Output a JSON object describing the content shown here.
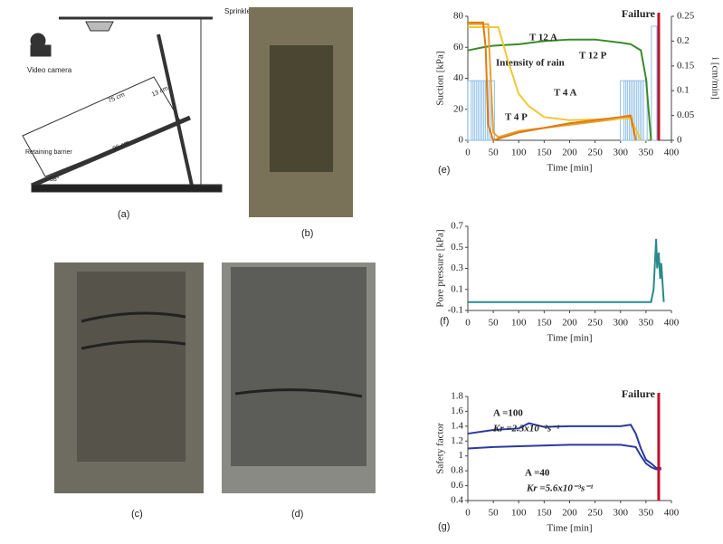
{
  "figure": {
    "panel_labels": [
      "(a)",
      "(b)",
      "(c)",
      "(d)",
      "(e)",
      "(f)",
      "(g)"
    ],
    "diagram_labels": {
      "sprinkler": "Sprinkler",
      "camera": "Video camera",
      "length_75": "75 cm",
      "length_13": "13 cm",
      "length_96": "96 cm",
      "barrier": "Retaining barrier",
      "angle": "38°"
    }
  },
  "chart_data": [
    {
      "type": "line",
      "xlabel": "Time [min]",
      "ylabel": "Suction [kPa]",
      "y2label": "i [cm/min]",
      "xlim": [
        0,
        400
      ],
      "xticks": [
        0,
        50,
        100,
        150,
        200,
        250,
        300,
        350,
        400
      ],
      "ylim": [
        0,
        80
      ],
      "yticks": [
        0,
        20,
        40,
        60,
        80
      ],
      "y2lim": [
        0,
        0.25
      ],
      "y2ticks": [
        0,
        0.05,
        0.1,
        0.15,
        0.2,
        0.25
      ],
      "failure": {
        "label": "Failure",
        "x": 375,
        "color": "#c0102a"
      },
      "series": [
        {
          "name": "Intensity of rain",
          "color": "#9ec8ea",
          "kind": "bar",
          "axis": "y2",
          "x": [
            5,
            12,
            19,
            26,
            33,
            40,
            47,
            305,
            312,
            319,
            326,
            333,
            340,
            347,
            366
          ],
          "values": [
            0.12,
            0.12,
            0.12,
            0.12,
            0.12,
            0.12,
            0.12,
            0.12,
            0.12,
            0.12,
            0.12,
            0.12,
            0.12,
            0.12,
            0.23
          ]
        },
        {
          "name": "T 12 A",
          "color": "#3a8a2a",
          "x": [
            0,
            30,
            50,
            100,
            150,
            200,
            250,
            300,
            320,
            340,
            350,
            360
          ],
          "values": [
            58,
            60,
            61,
            62,
            64,
            65,
            65,
            63,
            62,
            58,
            40,
            0
          ]
        },
        {
          "name": "T 4 A",
          "color": "#e8a030",
          "x": [
            0,
            40,
            45,
            50,
            60,
            100,
            200,
            300,
            320,
            330
          ],
          "values": [
            75,
            75,
            40,
            5,
            2,
            6,
            10,
            14,
            15,
            0
          ]
        },
        {
          "name": "T 12 P",
          "color": "#f0c838",
          "x": [
            0,
            60,
            80,
            100,
            120,
            150,
            200,
            300,
            320,
            340
          ],
          "values": [
            73,
            73,
            50,
            30,
            22,
            15,
            13,
            14,
            14,
            0
          ]
        },
        {
          "name": "T 4 P",
          "color": "#e07a10",
          "x": [
            0,
            30,
            35,
            40,
            50,
            100,
            200,
            300,
            320,
            330
          ],
          "values": [
            76,
            76,
            60,
            10,
            0,
            5,
            11,
            15,
            16,
            0
          ]
        }
      ]
    },
    {
      "type": "line",
      "xlabel": "Time [min]",
      "ylabel": "Pore pressure [kPa]",
      "xlim": [
        0,
        400
      ],
      "xticks": [
        0,
        50,
        100,
        150,
        200,
        250,
        300,
        350,
        400
      ],
      "ylim": [
        -0.1,
        0.7
      ],
      "yticks": [
        -0.1,
        0.1,
        0.3,
        0.5,
        0.7
      ],
      "series": [
        {
          "color": "#2a8a8a",
          "x": [
            0,
            200,
            300,
            360,
            365,
            370,
            372,
            375,
            378,
            380,
            385
          ],
          "values": [
            -0.02,
            -0.02,
            -0.02,
            -0.02,
            0.1,
            0.58,
            0.3,
            0.45,
            0.2,
            0.35,
            -0.02
          ]
        }
      ]
    },
    {
      "type": "line",
      "xlabel": "Time [min]",
      "ylabel": "Safety factor",
      "xlim": [
        0,
        400
      ],
      "xticks": [
        0,
        50,
        100,
        150,
        200,
        250,
        300,
        350,
        400
      ],
      "ylim": [
        0.4,
        1.8
      ],
      "yticks": [
        0.4,
        0.6,
        0.8,
        1,
        1.2,
        1.4,
        1.6,
        1.8
      ],
      "failure": {
        "label": "Failure",
        "x": 375,
        "color": "#c0102a"
      },
      "annotations": [
        "Kr =2.3x10⁻²s⁻¹",
        "Kr =5.6x10⁻³s⁻¹"
      ],
      "series": [
        {
          "name": "A =100",
          "color": "#2a3aa0",
          "x": [
            0,
            50,
            100,
            120,
            150,
            200,
            300,
            320,
            330,
            340,
            350,
            360,
            370,
            380
          ],
          "values": [
            1.3,
            1.35,
            1.37,
            1.44,
            1.39,
            1.4,
            1.4,
            1.42,
            1.3,
            1.1,
            0.95,
            0.9,
            0.84,
            0.84
          ]
        },
        {
          "name": "A =40",
          "color": "#2a3aa0",
          "x": [
            0,
            50,
            100,
            200,
            300,
            330,
            340,
            350,
            360,
            370,
            380
          ],
          "values": [
            1.1,
            1.12,
            1.13,
            1.15,
            1.15,
            1.12,
            1,
            0.9,
            0.85,
            0.82,
            0.82
          ]
        }
      ]
    }
  ]
}
